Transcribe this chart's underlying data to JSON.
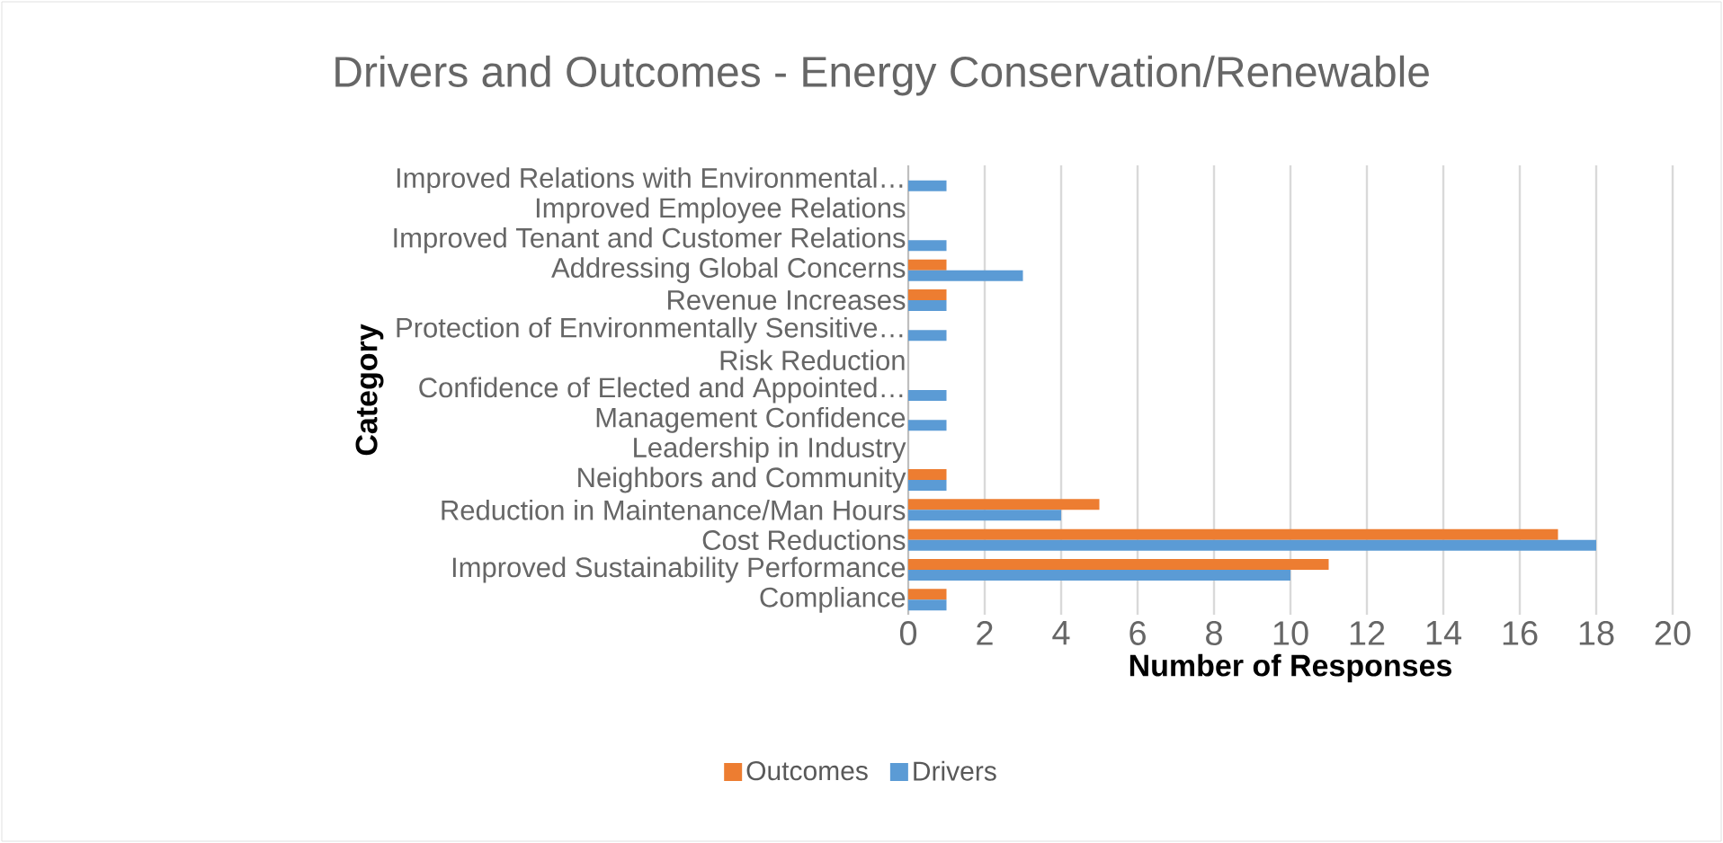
{
  "chart_data": {
    "type": "bar",
    "orientation": "horizontal",
    "title": "Drivers and Outcomes - Energy Conservation/Renewable",
    "xlabel": "Number of Responses",
    "ylabel": "Category",
    "categories": [
      "Improved Relations with Environmental…",
      "Improved Employee Relations",
      "Improved Tenant and Customer Relations",
      "Addressing Global Concerns",
      "Revenue Increases",
      "Protection of Environmentally Sensitive…",
      "Risk Reduction",
      "Confidence of Elected and Appointed…",
      "Management Confidence",
      "Leadership in Industry",
      "Neighbors and Community",
      "Reduction in Maintenance/Man Hours",
      "Cost Reductions",
      "Improved Sustainability Performance",
      "Compliance"
    ],
    "series": [
      {
        "name": "Outcomes",
        "color": "#ed7d31",
        "values": [
          0,
          0,
          0,
          1,
          1,
          0,
          0,
          0,
          0,
          0,
          1,
          5,
          17,
          11,
          1
        ]
      },
      {
        "name": "Drivers",
        "color": "#5b9bd5",
        "values": [
          1,
          0,
          1,
          3,
          1,
          1,
          0,
          1,
          1,
          0,
          1,
          4,
          18,
          10,
          1
        ]
      }
    ],
    "xlim": [
      0,
      20
    ],
    "xticks": [
      0,
      2,
      4,
      6,
      8,
      10,
      12,
      14,
      16,
      18,
      20
    ],
    "grid": "x",
    "legend": "bottom"
  }
}
